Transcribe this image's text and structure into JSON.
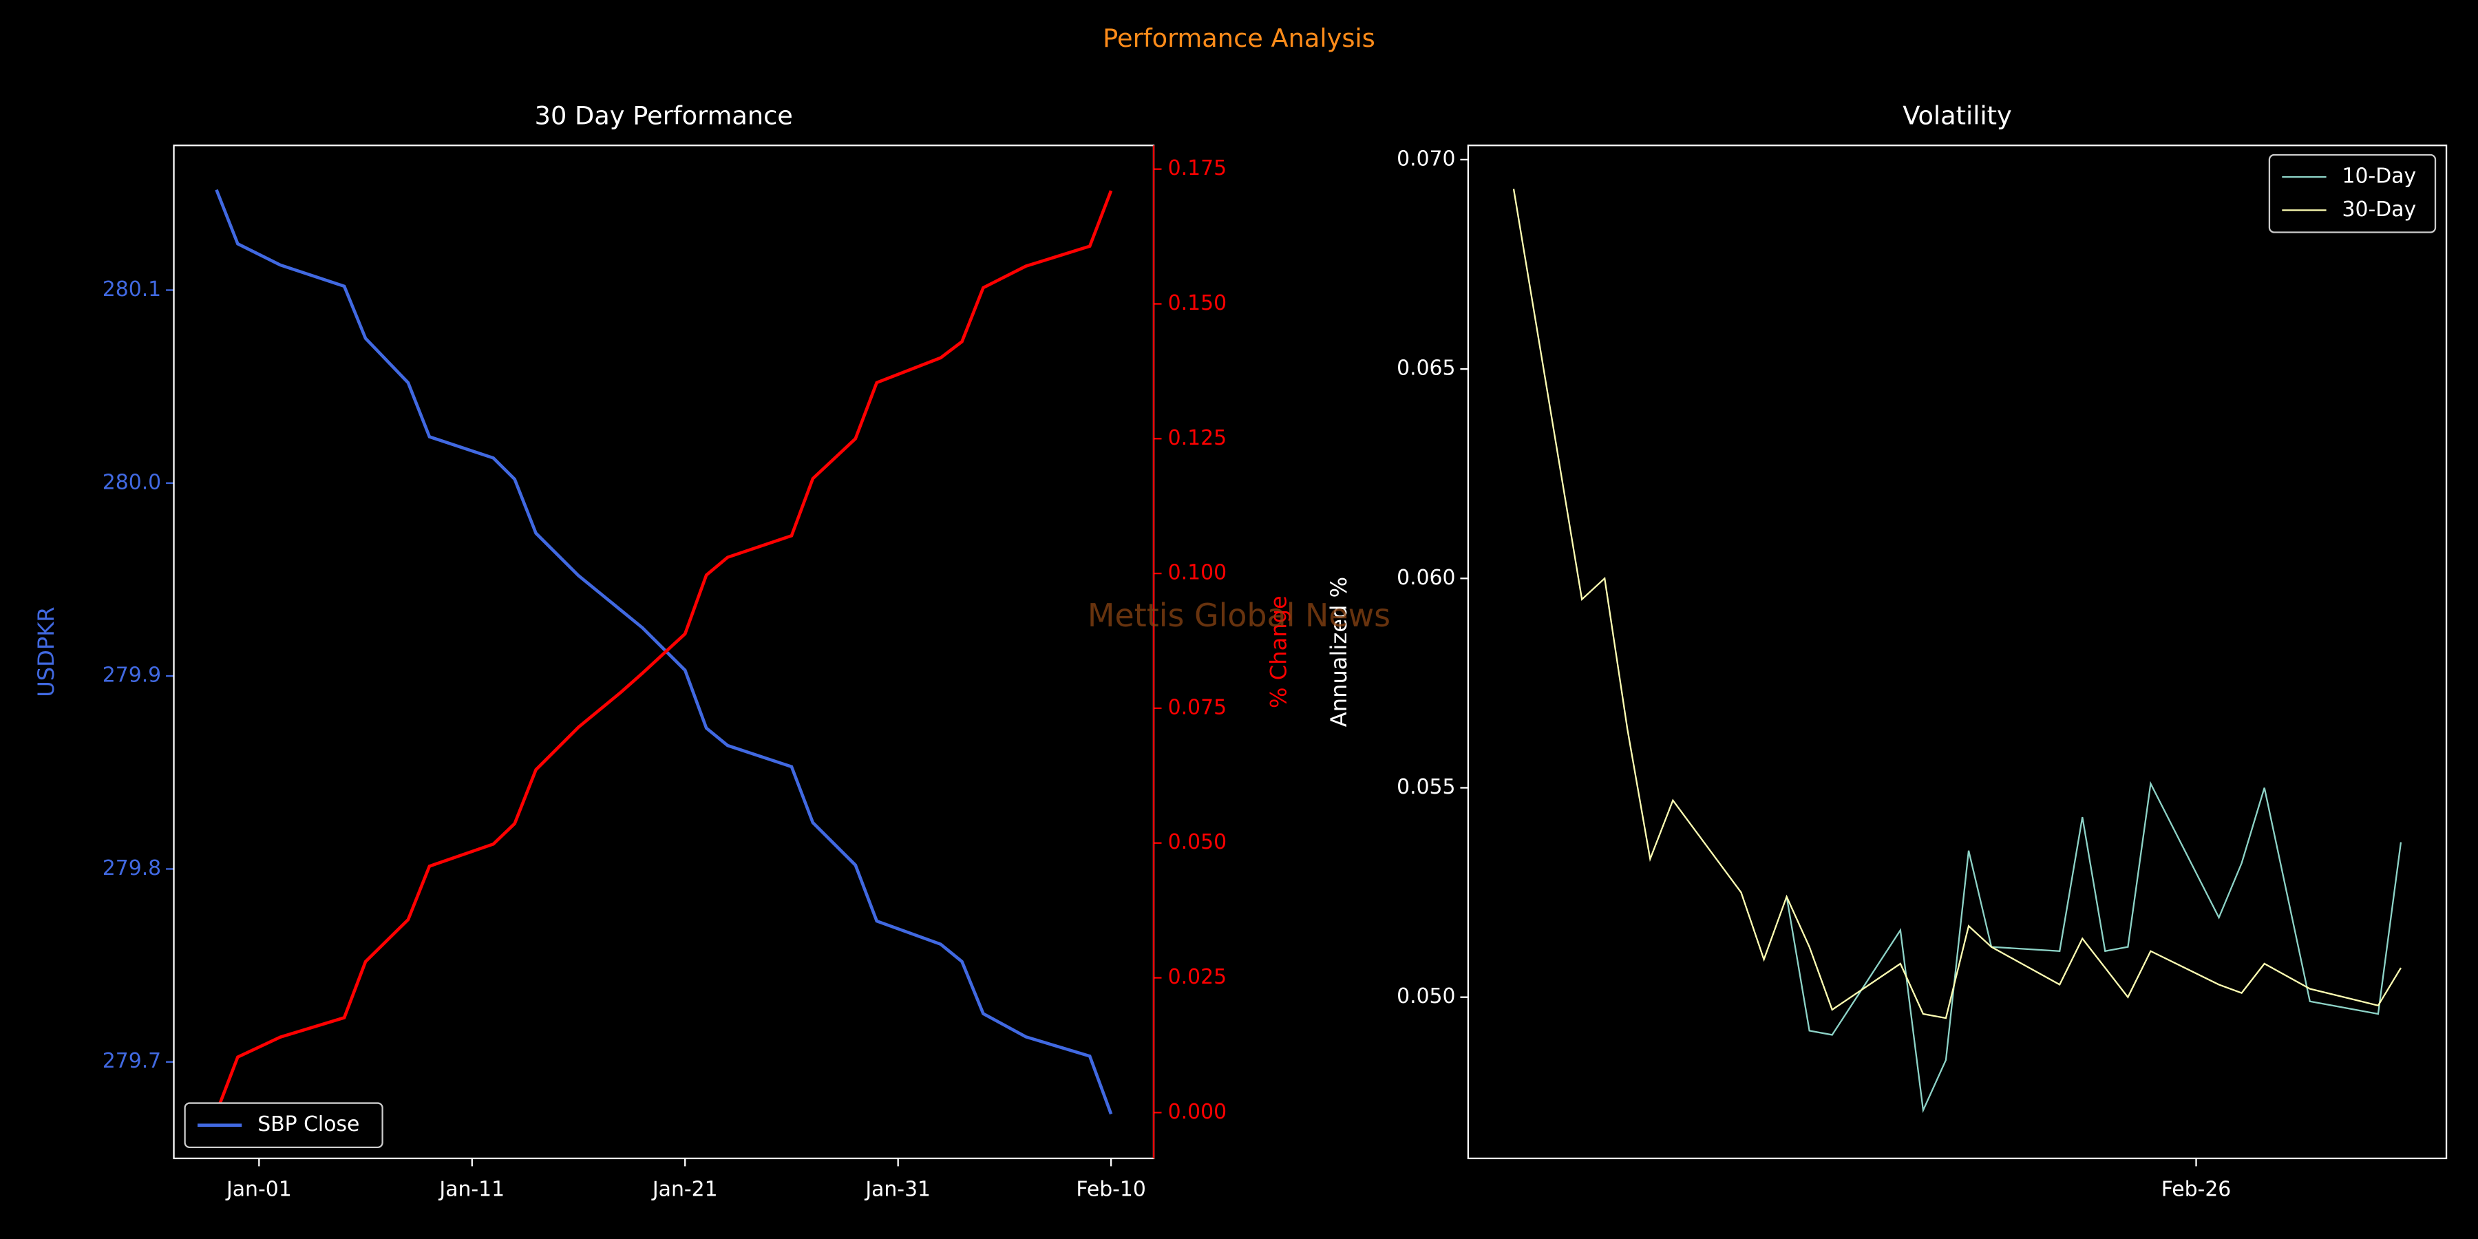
{
  "title": "Performance Analysis",
  "watermark": "Mettis Global News",
  "chart_data": [
    {
      "type": "line",
      "title": "30 Day Performance",
      "ylabel": "USDPKR",
      "y2label": "% Change",
      "x": [
        "Dec-30",
        "Dec-31",
        "Jan-02",
        "Jan-05",
        "Jan-06",
        "Jan-08",
        "Jan-09",
        "Jan-12",
        "Jan-13",
        "Jan-14",
        "Jan-16",
        "Jan-18",
        "Jan-19",
        "Jan-21",
        "Jan-22",
        "Jan-23",
        "Jan-26",
        "Jan-27",
        "Jan-29",
        "Jan-30",
        "Feb-02",
        "Feb-03",
        "Feb-04",
        "Feb-06",
        "Feb-09",
        "Feb-10"
      ],
      "series": [
        {
          "name": "SBP Close",
          "color": "#4169e1",
          "axis": "y",
          "values": [
            280.152,
            280.124,
            280.113,
            280.102,
            280.075,
            280.052,
            280.024,
            280.013,
            280.002,
            279.974,
            279.952,
            279.934,
            279.925,
            279.903,
            279.873,
            279.864,
            279.853,
            279.824,
            279.802,
            279.773,
            279.761,
            279.752,
            279.725,
            279.713,
            279.703,
            279.673
          ]
        },
        {
          "color": "#ff0000",
          "axis": "y2",
          "values": [
            0,
            0.0103,
            0.014,
            0.0176,
            0.028,
            0.0358,
            0.0457,
            0.0498,
            0.0536,
            0.0636,
            0.0715,
            0.078,
            0.0815,
            0.0888,
            0.0997,
            0.103,
            0.107,
            0.1176,
            0.125,
            0.1354,
            0.14,
            0.143,
            0.153,
            0.157,
            0.1607,
            0.171
          ]
        }
      ],
      "xlim": [
        "Dec-28",
        "Feb-12"
      ],
      "xticks": [
        "Jan-01",
        "Jan-11",
        "Jan-21",
        "Jan-31",
        "Feb-10"
      ],
      "ylim": [
        279.65,
        280.175
      ],
      "yticks": [
        279.7,
        279.8,
        279.9,
        {
          "value": 280.0,
          "label": "280.0"
        },
        280.1
      ],
      "y2lim": [
        -0.0085,
        0.1794
      ],
      "y2ticks": [
        {
          "value": 0,
          "label": "0.000"
        },
        0.025,
        {
          "value": 0.05,
          "label": "0.050"
        },
        0.075,
        {
          "value": 0.1,
          "label": "0.100"
        },
        0.125,
        {
          "value": 0.15,
          "label": "0.150"
        },
        0.175
      ],
      "grid": false,
      "legend": "lower left"
    },
    {
      "type": "line",
      "title": "Volatility",
      "ylabel": "Annualized %",
      "x": [
        "Jan-27",
        "Jan-30",
        "Jan-31",
        "Feb-01",
        "Feb-02",
        "Feb-03",
        "Feb-06",
        "Feb-07",
        "Feb-08",
        "Feb-09",
        "Feb-10",
        "Feb-13",
        "Feb-14",
        "Feb-15",
        "Feb-16",
        "Feb-17",
        "Feb-20",
        "Feb-21",
        "Feb-22",
        "Feb-23",
        "Feb-24",
        "Feb-27",
        "Feb-28",
        "Mar-01",
        "Mar-03",
        "Mar-06",
        "Mar-07"
      ],
      "series": [
        {
          "name": "10-Day",
          "color": "#8dd3c7",
          "values": [
            null,
            null,
            null,
            null,
            null,
            null,
            null,
            null,
            0.0524,
            0.0492,
            0.0491,
            0.0516,
            0.0473,
            0.0485,
            0.0535,
            0.0512,
            0.0511,
            0.0543,
            0.0511,
            0.0512,
            0.0551,
            0.0519,
            0.0532,
            0.055,
            0.0499,
            0.0496,
            0.0537
          ]
        },
        {
          "name": "30-Day",
          "color": "#ffffb3",
          "values": [
            0.0693,
            0.0595,
            0.06,
            0.0564,
            0.0533,
            0.0547,
            0.0525,
            0.0509,
            0.0524,
            0.0512,
            0.0497,
            0.0508,
            0.0496,
            0.0495,
            0.0517,
            0.0512,
            0.0503,
            0.0514,
            0.0507,
            0.05,
            0.0511,
            0.0503,
            0.0501,
            0.0508,
            0.0502,
            0.0498,
            0.0507
          ]
        }
      ],
      "xlim": [
        "Jan-25",
        "Mar-09"
      ],
      "xticks": [
        "Feb-26"
      ],
      "ylim": [
        0.04615,
        0.07034
      ],
      "yticks": [
        {
          "value": 0.05,
          "label": "0.050"
        },
        0.055,
        {
          "value": 0.06,
          "label": "0.060"
        },
        0.065,
        {
          "value": 0.07,
          "label": "0.070"
        }
      ],
      "grid": false,
      "legend": "upper right"
    }
  ]
}
